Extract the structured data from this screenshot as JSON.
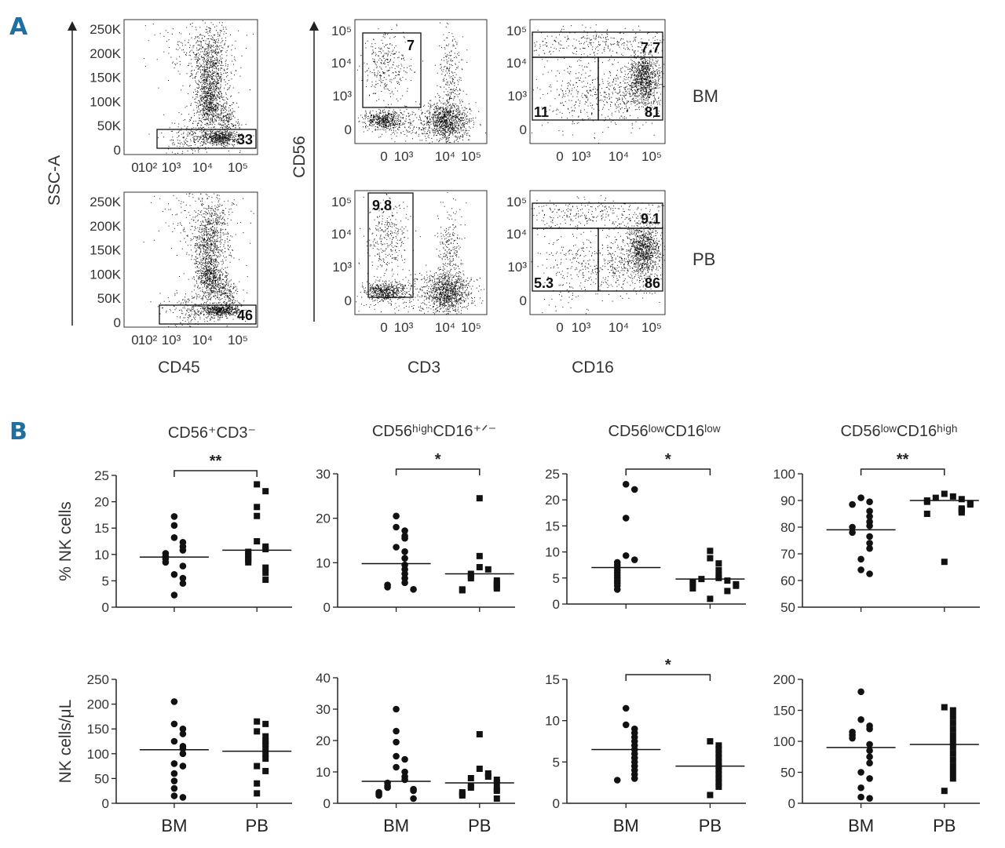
{
  "panels": {
    "a_label": "A",
    "b_label": "B"
  },
  "panel_a": {
    "ylabel_ssc": "SSC-A",
    "ylabel_cd56": "CD56",
    "xlabel_cd45": "CD45",
    "xlabel_cd3": "CD3",
    "xlabel_cd16": "CD16",
    "ssc_ticks": [
      "250K",
      "200K",
      "150K",
      "100K",
      "50K",
      "0"
    ],
    "fluor_ticks_y": [
      "10⁵",
      "10⁴",
      "10³",
      "0"
    ],
    "cd45_ticks": [
      "0",
      "10²",
      "10³",
      "10⁴",
      "10⁵"
    ],
    "fluor_ticks_x": [
      "0",
      "10³",
      "10⁴",
      "10⁵"
    ],
    "rows": [
      {
        "sample": "BM",
        "cd45_gate": "33",
        "cd3neg_gate": "7",
        "cd56high_gate": "7.7",
        "cd16low_gate": "11",
        "cd16high_gate": "81"
      },
      {
        "sample": "PB",
        "cd45_gate": "46",
        "cd3neg_gate": "9.8",
        "cd56high_gate": "9.1",
        "cd16low_gate": "5.3",
        "cd16high_gate": "86"
      }
    ]
  },
  "chart_data": [
    {
      "type": "scatter",
      "title": "CD56⁺CD3⁻",
      "ylabel": "% NK cells",
      "categories": [
        "BM",
        "PB"
      ],
      "ylim": [
        0,
        25
      ],
      "yticks": [
        0,
        5,
        10,
        15,
        20,
        25
      ],
      "significance": "**",
      "series": [
        {
          "values": [
            17.2,
            15.5,
            13.2,
            12.3,
            11.5,
            10.8,
            10.2,
            9.6,
            9.2,
            8.5,
            7.8,
            6.2,
            5.5,
            4.5,
            2.3
          ],
          "median": 9.5
        },
        {
          "values": [
            23.3,
            22.0,
            19.0,
            17.3,
            12.5,
            11.5,
            11.0,
            10.5,
            10.0,
            9.5,
            9.0,
            8.5,
            7.5,
            6.5,
            5.2
          ],
          "median": 10.8
        }
      ]
    },
    {
      "type": "scatter",
      "title": "CD56ʰⁱᵍʰCD16⁺ᐟ⁻",
      "ylabel": "",
      "categories": [
        "BM",
        "PB"
      ],
      "ylim": [
        0,
        30
      ],
      "yticks": [
        0,
        10,
        20,
        30
      ],
      "significance": "*",
      "series": [
        {
          "values": [
            20.5,
            18.0,
            17.2,
            16.0,
            15.5,
            13.5,
            12.5,
            11.0,
            9.5,
            8.5,
            7.5,
            6.5,
            5.5,
            5.0,
            4.5,
            4.0
          ],
          "median": 9.8
        },
        {
          "values": [
            24.5,
            11.5,
            9.0,
            8.5,
            7.5,
            7.0,
            6.5,
            6.0,
            5.5,
            5.0,
            4.5,
            4.2,
            4.0,
            3.8
          ],
          "median": 7.5
        }
      ]
    },
    {
      "type": "scatter",
      "title": "CD56ˡᵒʷCD16ˡᵒʷ",
      "ylabel": "",
      "categories": [
        "BM",
        "PB"
      ],
      "ylim": [
        0,
        25
      ],
      "yticks": [
        0,
        5,
        10,
        15,
        20,
        25
      ],
      "significance": "*",
      "series": [
        {
          "values": [
            23.0,
            22.0,
            16.5,
            9.3,
            8.5,
            8.0,
            7.5,
            7.0,
            6.5,
            6.0,
            5.5,
            5.0,
            4.5,
            4.0,
            3.5,
            2.8
          ],
          "median": 7.0
        },
        {
          "values": [
            10.2,
            8.8,
            7.8,
            6.5,
            5.5,
            5.0,
            4.8,
            4.5,
            4.2,
            4.0,
            3.8,
            3.5,
            3.0,
            2.5,
            1.0
          ],
          "median": 4.8
        }
      ]
    },
    {
      "type": "scatter",
      "title": "CD56ˡᵒʷCD16ʰⁱᵍʰ",
      "ylabel": "",
      "categories": [
        "BM",
        "PB"
      ],
      "ylim": [
        50,
        100
      ],
      "yticks": [
        50,
        60,
        70,
        80,
        90,
        100
      ],
      "significance": "**",
      "series": [
        {
          "values": [
            91.0,
            89.5,
            88.5,
            86.0,
            84.0,
            82.0,
            80.5,
            80.0,
            78.0,
            76.5,
            74.0,
            72.0,
            68.0,
            64.0,
            62.5
          ],
          "median": 79.0
        },
        {
          "values": [
            92.5,
            91.5,
            91.0,
            90.5,
            90.0,
            89.5,
            89.0,
            88.5,
            87.0,
            86.5,
            86.0,
            85.5,
            85.0,
            67.0
          ],
          "median": 90.0
        }
      ]
    },
    {
      "type": "scatter",
      "title": "",
      "ylabel": "NK cells/μL",
      "categories": [
        "BM",
        "PB"
      ],
      "ylim": [
        0,
        250
      ],
      "yticks": [
        0,
        50,
        100,
        150,
        200,
        250
      ],
      "significance": "",
      "series": [
        {
          "values": [
            205,
            160,
            150,
            140,
            125,
            115,
            110,
            100,
            80,
            75,
            60,
            45,
            30,
            15,
            12
          ],
          "median": 108
        },
        {
          "values": [
            165,
            160,
            145,
            135,
            125,
            120,
            110,
            100,
            90,
            75,
            65,
            40,
            20
          ],
          "median": 105
        }
      ]
    },
    {
      "type": "scatter",
      "title": "",
      "ylabel": "",
      "categories": [
        "BM",
        "PB"
      ],
      "ylim": [
        0,
        40
      ],
      "yticks": [
        0,
        10,
        20,
        30,
        40
      ],
      "significance": "",
      "series": [
        {
          "values": [
            30,
            23,
            19.5,
            15,
            14,
            11.5,
            10,
            8.5,
            7.5,
            6.5,
            5.5,
            5,
            4.5,
            4,
            3.5,
            3,
            2.5,
            1.5
          ],
          "median": 7.0
        },
        {
          "values": [
            22,
            11,
            9.5,
            8.5,
            8,
            7.5,
            6.5,
            5.5,
            5,
            4.5,
            4,
            3.5,
            3,
            2.5,
            1.5
          ],
          "median": 6.5
        }
      ]
    },
    {
      "type": "scatter",
      "title": "",
      "ylabel": "",
      "categories": [
        "BM",
        "PB"
      ],
      "ylim": [
        0,
        15
      ],
      "yticks": [
        0,
        5,
        10,
        15
      ],
      "significance": "*",
      "series": [
        {
          "values": [
            11.5,
            9.5,
            9.0,
            8.5,
            8.0,
            7.5,
            7.0,
            6.5,
            6.0,
            5.5,
            5.0,
            4.5,
            4.0,
            3.5,
            3.0,
            2.8
          ],
          "median": 6.5
        },
        {
          "values": [
            7.5,
            7.0,
            6.5,
            6.0,
            5.5,
            5.0,
            4.5,
            4.0,
            3.5,
            3.0,
            2.5,
            2.0,
            1.0
          ],
          "median": 4.5
        }
      ]
    },
    {
      "type": "scatter",
      "title": "",
      "ylabel": "",
      "categories": [
        "BM",
        "PB"
      ],
      "ylim": [
        0,
        200
      ],
      "yticks": [
        0,
        50,
        100,
        150,
        200
      ],
      "significance": "",
      "series": [
        {
          "values": [
            180,
            135,
            125,
            120,
            115,
            110,
            105,
            95,
            85,
            75,
            65,
            50,
            40,
            25,
            10,
            8
          ],
          "median": 90
        },
        {
          "values": [
            155,
            150,
            140,
            130,
            120,
            110,
            100,
            90,
            80,
            70,
            60,
            50,
            40,
            20
          ],
          "median": 95
        }
      ]
    }
  ]
}
